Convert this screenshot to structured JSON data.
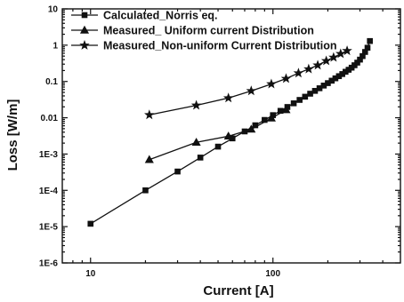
{
  "chart_data": {
    "type": "line",
    "title": "",
    "xlabel": "Current [A]",
    "ylabel": "Loss [W/m]",
    "xscale": "log",
    "yscale": "log",
    "xlim": [
      7,
      500
    ],
    "ylim": [
      1e-06,
      10
    ],
    "grid": false,
    "legend_position": "top-left",
    "x_ticks": [
      {
        "v": 10,
        "label": "10"
      },
      {
        "v": 100,
        "label": "100"
      }
    ],
    "y_ticks": [
      {
        "v": 10,
        "label": "10"
      },
      {
        "v": 1,
        "label": "1"
      },
      {
        "v": 0.1,
        "label": "0.1"
      },
      {
        "v": 0.01,
        "label": "0.01"
      },
      {
        "v": 0.001,
        "label": "1E-3"
      },
      {
        "v": 0.0001,
        "label": "1E-4"
      },
      {
        "v": 1e-05,
        "label": "1E-5"
      },
      {
        "v": 1e-06,
        "label": "1E-6"
      }
    ],
    "series": [
      {
        "name": "Calculated_Norris eq.",
        "marker": "square",
        "x": [
          10,
          20,
          30,
          40,
          50,
          60,
          70,
          80,
          90,
          100,
          110,
          120,
          130,
          140,
          150,
          160,
          170,
          180,
          190,
          200,
          210,
          220,
          230,
          240,
          250,
          260,
          270,
          280,
          290,
          300,
          310,
          320,
          330,
          340
        ],
        "y": [
          1.2e-05,
          0.0001,
          0.00033,
          0.0008,
          0.0016,
          0.0027,
          0.0042,
          0.0062,
          0.0087,
          0.0118,
          0.0155,
          0.0198,
          0.025,
          0.031,
          0.038,
          0.046,
          0.055,
          0.065,
          0.077,
          0.09,
          0.105,
          0.122,
          0.14,
          0.16,
          0.185,
          0.21,
          0.24,
          0.28,
          0.33,
          0.4,
          0.5,
          0.65,
          0.85,
          1.3
        ]
      },
      {
        "name": "Measured_ Uniform current Distribution",
        "marker": "triangle",
        "x": [
          21,
          38,
          57,
          76,
          98,
          118
        ],
        "y": [
          0.0007,
          0.0021,
          0.0031,
          0.0048,
          0.0097,
          0.0165
        ]
      },
      {
        "name": "Measured_Non-uniform Current Distribution",
        "marker": "star",
        "x": [
          21,
          38,
          57,
          76,
          98,
          118,
          138,
          157,
          176,
          196,
          215,
          235,
          255
        ],
        "y": [
          0.012,
          0.022,
          0.035,
          0.055,
          0.085,
          0.12,
          0.17,
          0.22,
          0.28,
          0.37,
          0.46,
          0.58,
          0.7
        ]
      }
    ]
  }
}
